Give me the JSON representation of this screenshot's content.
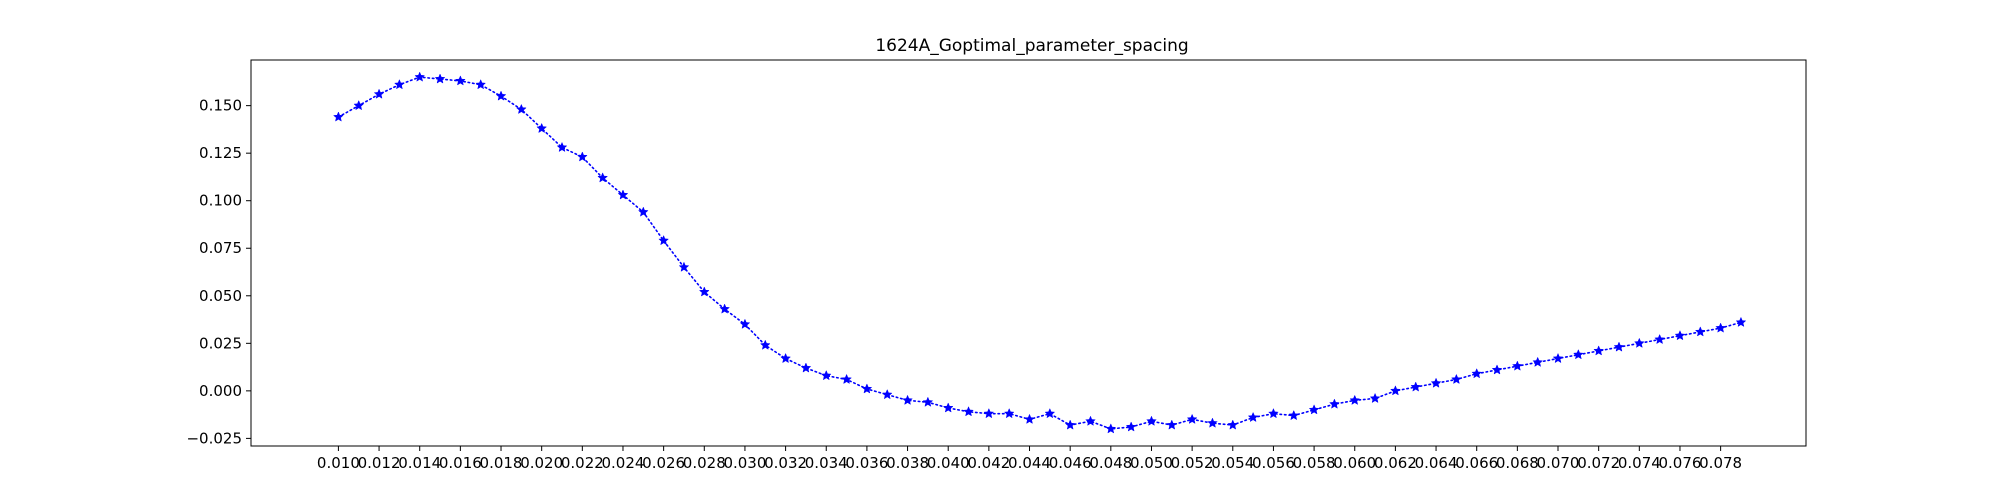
{
  "chart_data": {
    "type": "line",
    "title": "1624A_Goptimal_parameter_spacing",
    "xlabel": "",
    "ylabel": "",
    "xlim": [
      0.0057,
      0.0822
    ],
    "ylim": [
      -0.029,
      0.174
    ],
    "grid": false,
    "line_style": "dotted",
    "marker": "star",
    "color": "#0000ff",
    "x_ticks": [
      "0.010",
      "0.012",
      "0.014",
      "0.016",
      "0.018",
      "0.020",
      "0.022",
      "0.024",
      "0.026",
      "0.028",
      "0.030",
      "0.032",
      "0.034",
      "0.036",
      "0.038",
      "0.040",
      "0.042",
      "0.044",
      "0.046",
      "0.048",
      "0.050",
      "0.052",
      "0.054",
      "0.056",
      "0.058",
      "0.060",
      "0.062",
      "0.064",
      "0.066",
      "0.068",
      "0.070",
      "0.072",
      "0.074",
      "0.076",
      "0.078"
    ],
    "y_ticks": [
      "0.150",
      "0.125",
      "0.100",
      "0.075",
      "0.050",
      "0.025",
      "0.000",
      "−0.025"
    ],
    "series": [
      {
        "x": [
          0.01,
          0.011,
          0.012,
          0.013,
          0.014,
          0.015,
          0.016,
          0.017,
          0.018,
          0.019,
          0.02,
          0.021,
          0.022,
          0.023,
          0.024,
          0.025,
          0.026,
          0.027,
          0.028,
          0.029,
          0.03,
          0.031,
          0.032,
          0.033,
          0.034,
          0.035,
          0.036,
          0.037,
          0.038,
          0.039,
          0.04,
          0.041,
          0.042,
          0.043,
          0.044,
          0.045,
          0.046,
          0.047,
          0.048,
          0.049,
          0.05,
          0.051,
          0.052,
          0.053,
          0.054,
          0.055,
          0.056,
          0.057,
          0.058,
          0.059,
          0.06,
          0.061,
          0.062,
          0.063,
          0.064,
          0.065,
          0.066,
          0.067,
          0.068,
          0.069,
          0.07,
          0.071,
          0.072,
          0.073,
          0.074,
          0.075,
          0.076,
          0.077,
          0.078,
          0.079
        ],
        "y": [
          0.144,
          0.15,
          0.156,
          0.161,
          0.165,
          0.164,
          0.163,
          0.161,
          0.155,
          0.148,
          0.138,
          0.128,
          0.123,
          0.112,
          0.103,
          0.094,
          0.079,
          0.065,
          0.052,
          0.043,
          0.035,
          0.024,
          0.017,
          0.012,
          0.008,
          0.006,
          0.001,
          -0.002,
          -0.005,
          -0.006,
          -0.009,
          -0.011,
          -0.012,
          -0.012,
          -0.015,
          -0.012,
          -0.018,
          -0.016,
          -0.02,
          -0.019,
          -0.016,
          -0.018,
          -0.015,
          -0.017,
          -0.018,
          -0.014,
          -0.012,
          -0.013,
          -0.01,
          -0.007,
          -0.005,
          -0.004,
          0.0,
          0.002,
          0.004,
          0.006,
          0.009,
          0.011,
          0.013,
          0.015,
          0.017,
          0.019,
          0.021,
          0.023,
          0.025,
          0.027,
          0.029,
          0.031,
          0.033,
          0.036
        ]
      }
    ]
  }
}
